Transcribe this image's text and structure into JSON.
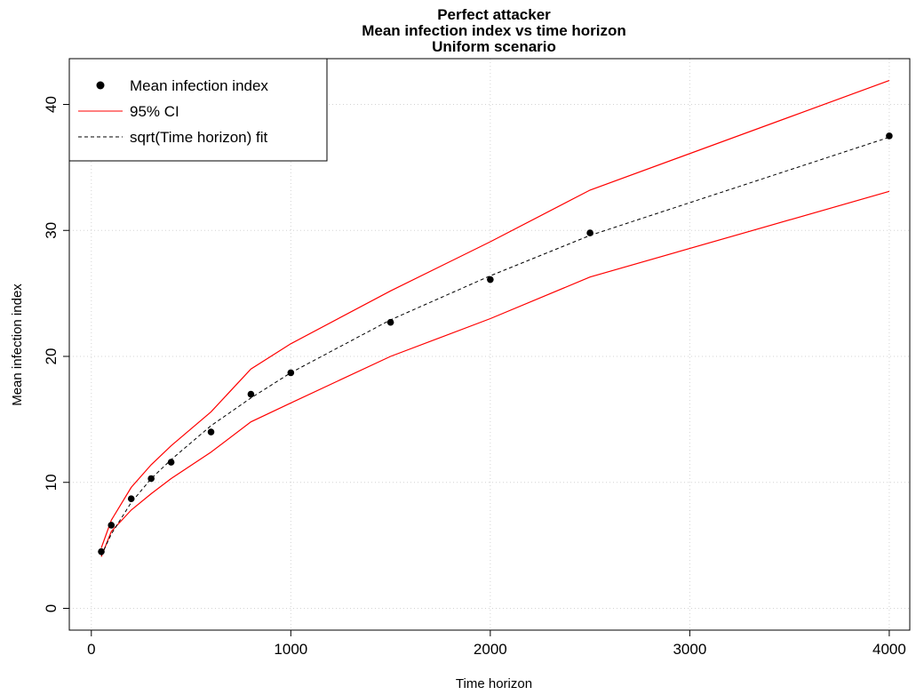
{
  "chart_data": {
    "type": "line",
    "title": [
      "Perfect attacker",
      "Mean infection index vs time horizon",
      "Uniform scenario"
    ],
    "xlabel": "Time horizon",
    "ylabel": "Mean infection index",
    "xlim": [
      0,
      4000
    ],
    "ylim": [
      0,
      40
    ],
    "x_ticks": [
      0,
      1000,
      2000,
      3000,
      4000
    ],
    "y_ticks": [
      0,
      10,
      20,
      30,
      40
    ],
    "grid": true,
    "legend_position": "top-left",
    "legend": [
      {
        "label": "Mean infection index",
        "style": "point"
      },
      {
        "label": "95% CI",
        "style": "solid-line"
      },
      {
        "label": "sqrt(Time horizon) fit",
        "style": "dashed-line"
      }
    ],
    "colors": {
      "points": "#000000",
      "ci": "#ff0000",
      "fit": "#000000",
      "grid": "#d3d3d3"
    },
    "x": [
      50,
      100,
      200,
      300,
      400,
      600,
      800,
      1000,
      1500,
      2000,
      2500,
      4000
    ],
    "series": [
      {
        "name": "Mean infection index",
        "kind": "points",
        "values": [
          4.5,
          6.6,
          8.7,
          10.3,
          11.6,
          14.0,
          17.0,
          18.7,
          22.7,
          26.1,
          29.8,
          37.5
        ]
      },
      {
        "name": "95% CI",
        "kind": "line",
        "values": [
          4.8,
          7.0,
          9.6,
          11.4,
          12.9,
          15.6,
          19.0,
          21.0,
          25.2,
          29.1,
          33.2,
          41.9
        ]
      },
      {
        "kind": "line",
        "values": [
          4.1,
          6.1,
          7.8,
          9.1,
          10.3,
          12.4,
          14.8,
          16.3,
          20.0,
          23.0,
          26.3,
          33.1
        ]
      },
      {
        "name": "sqrt(Time horizon) fit",
        "kind": "dashed",
        "values": [
          4.2,
          5.9,
          8.4,
          10.3,
          11.8,
          14.5,
          16.7,
          18.7,
          22.9,
          26.4,
          29.6,
          37.4
        ]
      }
    ]
  }
}
